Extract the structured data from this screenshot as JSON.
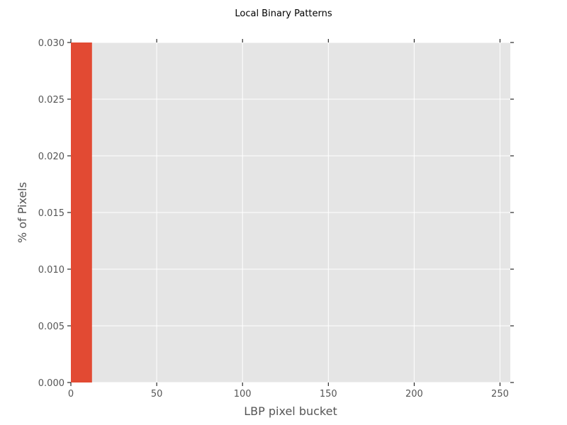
{
  "chart_data": {
    "type": "bar",
    "title": "Local Binary Patterns",
    "xlabel": "LBP pixel bucket",
    "ylabel": "% of Pixels",
    "xlim": [
      0,
      256
    ],
    "ylim": [
      0,
      0.03
    ],
    "xticks": [
      0,
      50,
      100,
      150,
      200,
      250
    ],
    "xtick_labels": [
      "0",
      "50",
      "100",
      "150",
      "200",
      "250"
    ],
    "yticks": [
      0,
      0.005,
      0.01,
      0.015,
      0.02,
      0.025,
      0.03
    ],
    "ytick_labels": [
      "0.000",
      "0.005",
      "0.010",
      "0.015",
      "0.020",
      "0.025",
      "0.030"
    ],
    "grid": true,
    "bars": [
      {
        "x_start": 0,
        "x_end": 12.3,
        "value": 0.03
      }
    ],
    "colors": {
      "bar": "#E24A33",
      "axes_background": "#E5E5E5",
      "grid": "#FFFFFF",
      "tick_label": "#555555"
    }
  }
}
